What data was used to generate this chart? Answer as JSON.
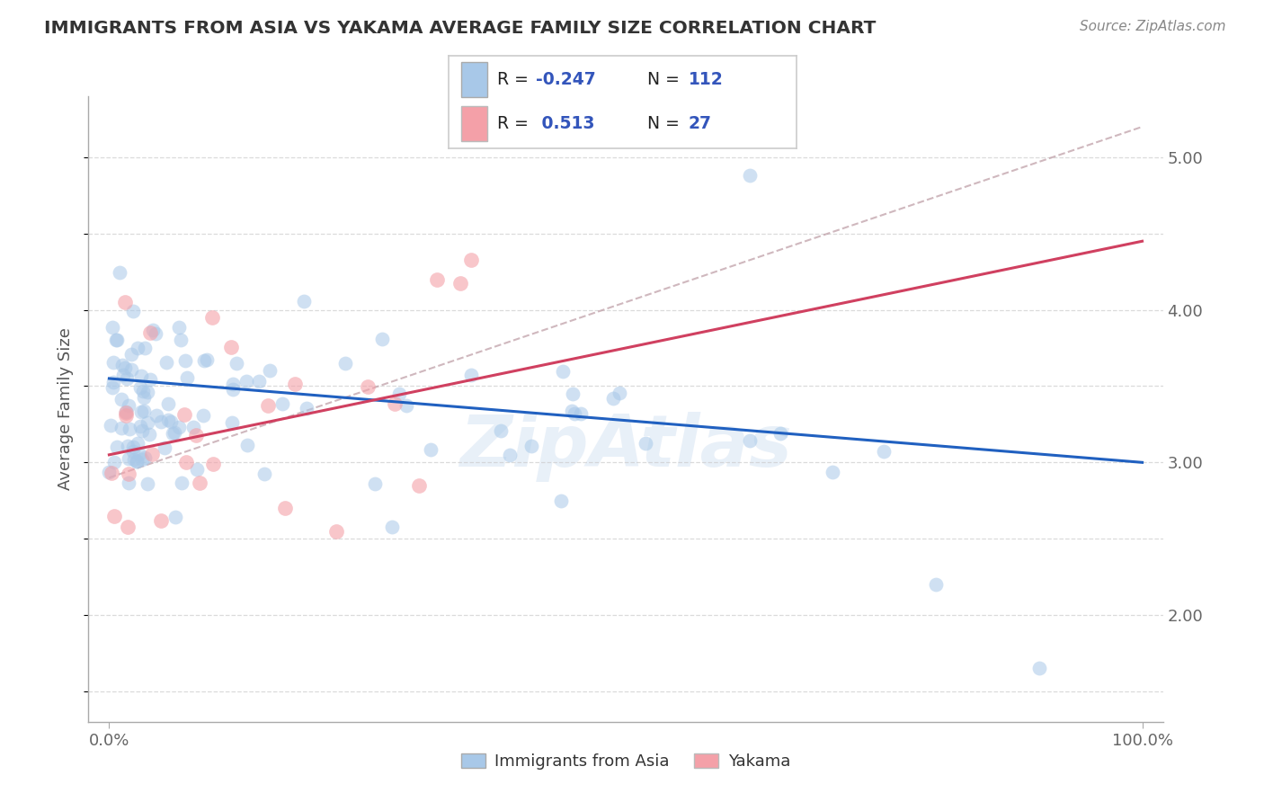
{
  "title": "IMMIGRANTS FROM ASIA VS YAKAMA AVERAGE FAMILY SIZE CORRELATION CHART",
  "source_text": "Source: ZipAtlas.com",
  "ylabel": "Average Family Size",
  "xlim": [
    -2.0,
    102.0
  ],
  "ylim": [
    1.3,
    5.4
  ],
  "yticks_right": [
    2.0,
    3.0,
    4.0,
    5.0
  ],
  "legend_label1": "Immigrants from Asia",
  "legend_label2": "Yakama",
  "blue_scatter_color": "#a8c8e8",
  "pink_scatter_color": "#f4a0a8",
  "blue_line_color": "#2060c0",
  "pink_line_color": "#d04060",
  "dash_line_color": "#c0a0a8",
  "watermark": "ZipAtlas",
  "background_color": "#ffffff",
  "grid_color": "#cccccc",
  "title_color": "#333333",
  "legend_box_color": "#ffffff",
  "legend_border_color": "#cccccc",
  "blue_legend_color": "#a8c8e8",
  "pink_legend_color": "#f4a0a8",
  "stat_text_color": "#333333",
  "stat_value_color": "#3355bb",
  "asia_R": -0.247,
  "asia_N": 112,
  "yakama_R": 0.513,
  "yakama_N": 27,
  "blue_line_x0": 0,
  "blue_line_x1": 100,
  "blue_line_y0": 3.55,
  "blue_line_y1": 3.0,
  "pink_line_x0": 0,
  "pink_line_x1": 100,
  "pink_line_y0": 3.05,
  "pink_line_y1": 4.45,
  "dash_line_x0": 0,
  "dash_line_x1": 100,
  "dash_line_y0": 2.9,
  "dash_line_y1": 5.2
}
